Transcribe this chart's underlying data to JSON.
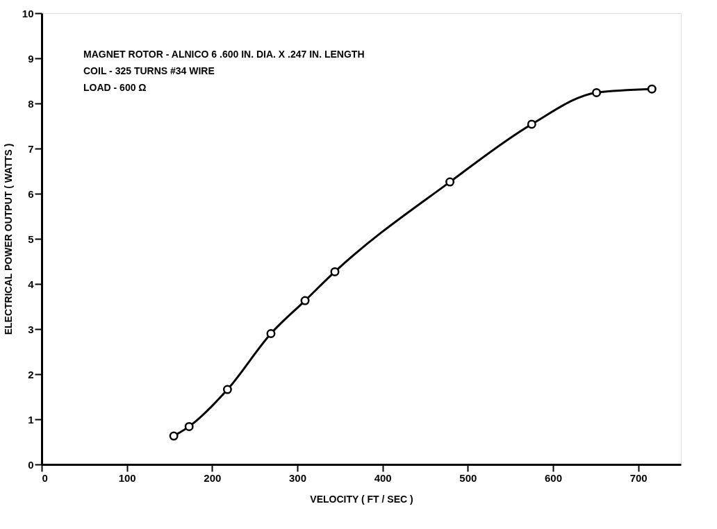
{
  "chart_data": {
    "type": "line",
    "xlabel": "VELOCITY ( FT / SEC )",
    "ylabel": "ELECTRICAL POWER OUTPUT ( WATTS )",
    "x": [
      155,
      173,
      218,
      269,
      309,
      344,
      479,
      575,
      651,
      716
    ],
    "series": [
      {
        "color": "#000000",
        "values": [
          0.63,
          0.84,
          1.66,
          2.9,
          3.63,
          4.27,
          6.26,
          7.54,
          8.24,
          8.32
        ]
      }
    ],
    "xlim": [
      0,
      750
    ],
    "xticks": [
      0,
      100,
      200,
      300,
      400,
      500,
      600,
      700
    ],
    "ylim": [
      0,
      10
    ],
    "yticks": [
      0,
      1,
      2,
      3,
      4,
      5,
      6,
      7,
      8,
      9,
      10
    ],
    "marker": "circle",
    "line_style": "solid",
    "grid": false,
    "annotations": [
      "MAGNET ROTOR - ALNICO 6  .600 IN. DIA. X .247 IN. LENGTH",
      "COIL - 325 TURNS #34 WIRE",
      "LOAD - 600 Ω"
    ]
  }
}
